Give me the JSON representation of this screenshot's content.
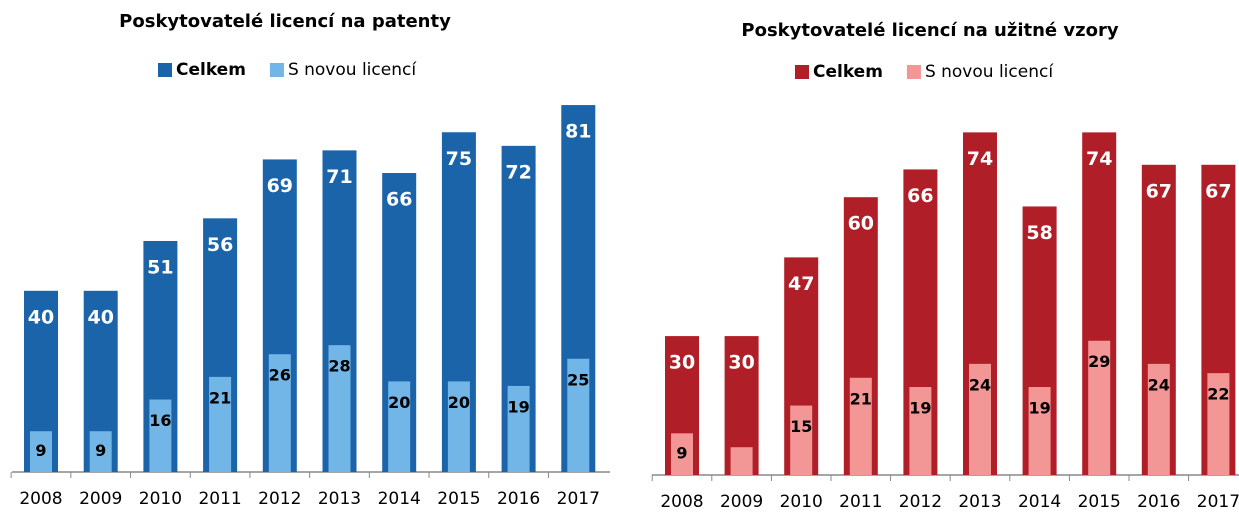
{
  "chart_data": [
    {
      "type": "bar",
      "title": "Poskytovatelé licencí na patenty",
      "categories": [
        "2008",
        "2009",
        "2010",
        "2011",
        "2012",
        "2013",
        "2014",
        "2015",
        "2016",
        "2017"
      ],
      "series": [
        {
          "name": "Celkem",
          "color": "#1b64aa",
          "values": [
            40,
            40,
            51,
            56,
            69,
            71,
            66,
            75,
            72,
            81
          ]
        },
        {
          "name": "S novou licencí",
          "color": "#71b6e6",
          "values": [
            9,
            9,
            16,
            21,
            26,
            28,
            20,
            20,
            19,
            25
          ]
        }
      ]
    },
    {
      "type": "bar",
      "title": "Poskytovatelé licencí na užitné vzory",
      "categories": [
        "2008",
        "2009",
        "2010",
        "2011",
        "2012",
        "2013",
        "2014",
        "2015",
        "2016",
        "2017"
      ],
      "series": [
        {
          "name": "Celkem",
          "color": "#b01e27",
          "values": [
            30,
            30,
            47,
            60,
            66,
            74,
            58,
            74,
            67,
            67
          ]
        },
        {
          "name": "S novou licencí",
          "color": "#f39696",
          "values": [
            9,
            6,
            15,
            21,
            19,
            24,
            19,
            29,
            24,
            22
          ],
          "value_labels": [
            "9",
            null,
            "15",
            "21",
            "19",
            "24",
            "19",
            "29",
            "24",
            "22"
          ]
        }
      ]
    }
  ]
}
